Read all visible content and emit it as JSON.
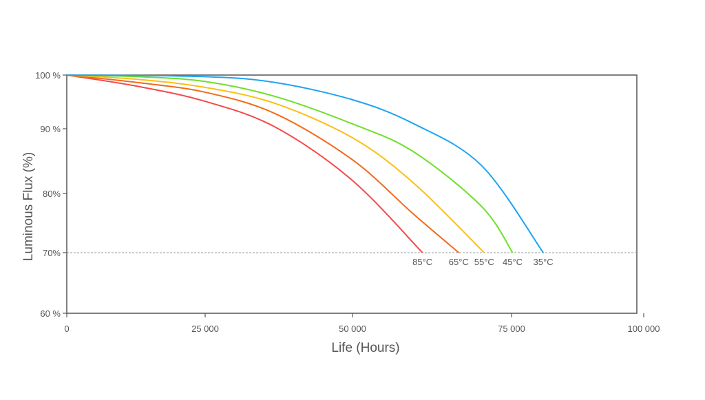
{
  "chart_data": {
    "type": "line",
    "title": "",
    "xlabel": "Life (Hours)",
    "ylabel": "Luminous Flux (%)",
    "xlim": [
      0,
      100000
    ],
    "ylim": [
      60,
      100
    ],
    "x_ticks": [
      {
        "value": 0,
        "label": "0"
      },
      {
        "value": 25000,
        "label": "25 000"
      },
      {
        "value": 50000,
        "label": "50 000"
      },
      {
        "value": 75000,
        "label": "75 000"
      },
      {
        "value": 100000,
        "label": "100 000"
      }
    ],
    "y_ticks": [
      {
        "value": 100,
        "label": "100 %"
      },
      {
        "value": 90,
        "label": "90 %"
      },
      {
        "value": 80,
        "label": "80%"
      },
      {
        "value": 70,
        "label": "70%"
      },
      {
        "value": 60,
        "label": "60 %"
      }
    ],
    "reference_line": {
      "y": 70,
      "style": "dashed"
    },
    "grid": false,
    "series": [
      {
        "name": "85°C",
        "color": "#f44a4a",
        "points": [
          [
            0,
            100
          ],
          [
            12800,
            97.9
          ],
          [
            25000,
            95.1
          ],
          [
            36900,
            90.3
          ],
          [
            50000,
            82
          ],
          [
            61000,
            70
          ]
        ]
      },
      {
        "name": "65°C",
        "color": "#f26a1b",
        "points": [
          [
            0,
            100
          ],
          [
            12800,
            98.6
          ],
          [
            25000,
            96.8
          ],
          [
            36900,
            92.8
          ],
          [
            50000,
            85.2
          ],
          [
            59500,
            76.6
          ],
          [
            66700,
            70
          ]
        ]
      },
      {
        "name": "55°C",
        "color": "#fbbf12",
        "points": [
          [
            0,
            100
          ],
          [
            12800,
            99.2
          ],
          [
            25000,
            97.7
          ],
          [
            36900,
            94.7
          ],
          [
            50000,
            88.6
          ],
          [
            59500,
            81.7
          ],
          [
            70700,
            70
          ]
        ]
      },
      {
        "name": "45°C",
        "color": "#6ee02a",
        "points": [
          [
            0,
            100
          ],
          [
            12800,
            99.7
          ],
          [
            25000,
            98.8
          ],
          [
            36900,
            96
          ],
          [
            50000,
            90.9
          ],
          [
            59500,
            86.5
          ],
          [
            70300,
            77.8
          ],
          [
            75200,
            70
          ]
        ]
      },
      {
        "name": "35°C",
        "color": "#1ea4f0",
        "points": [
          [
            0,
            100
          ],
          [
            25000,
            99.7
          ],
          [
            36900,
            98.6
          ],
          [
            50000,
            95.4
          ],
          [
            59500,
            91
          ],
          [
            70300,
            84.3
          ],
          [
            81000,
            70
          ]
        ]
      }
    ]
  }
}
